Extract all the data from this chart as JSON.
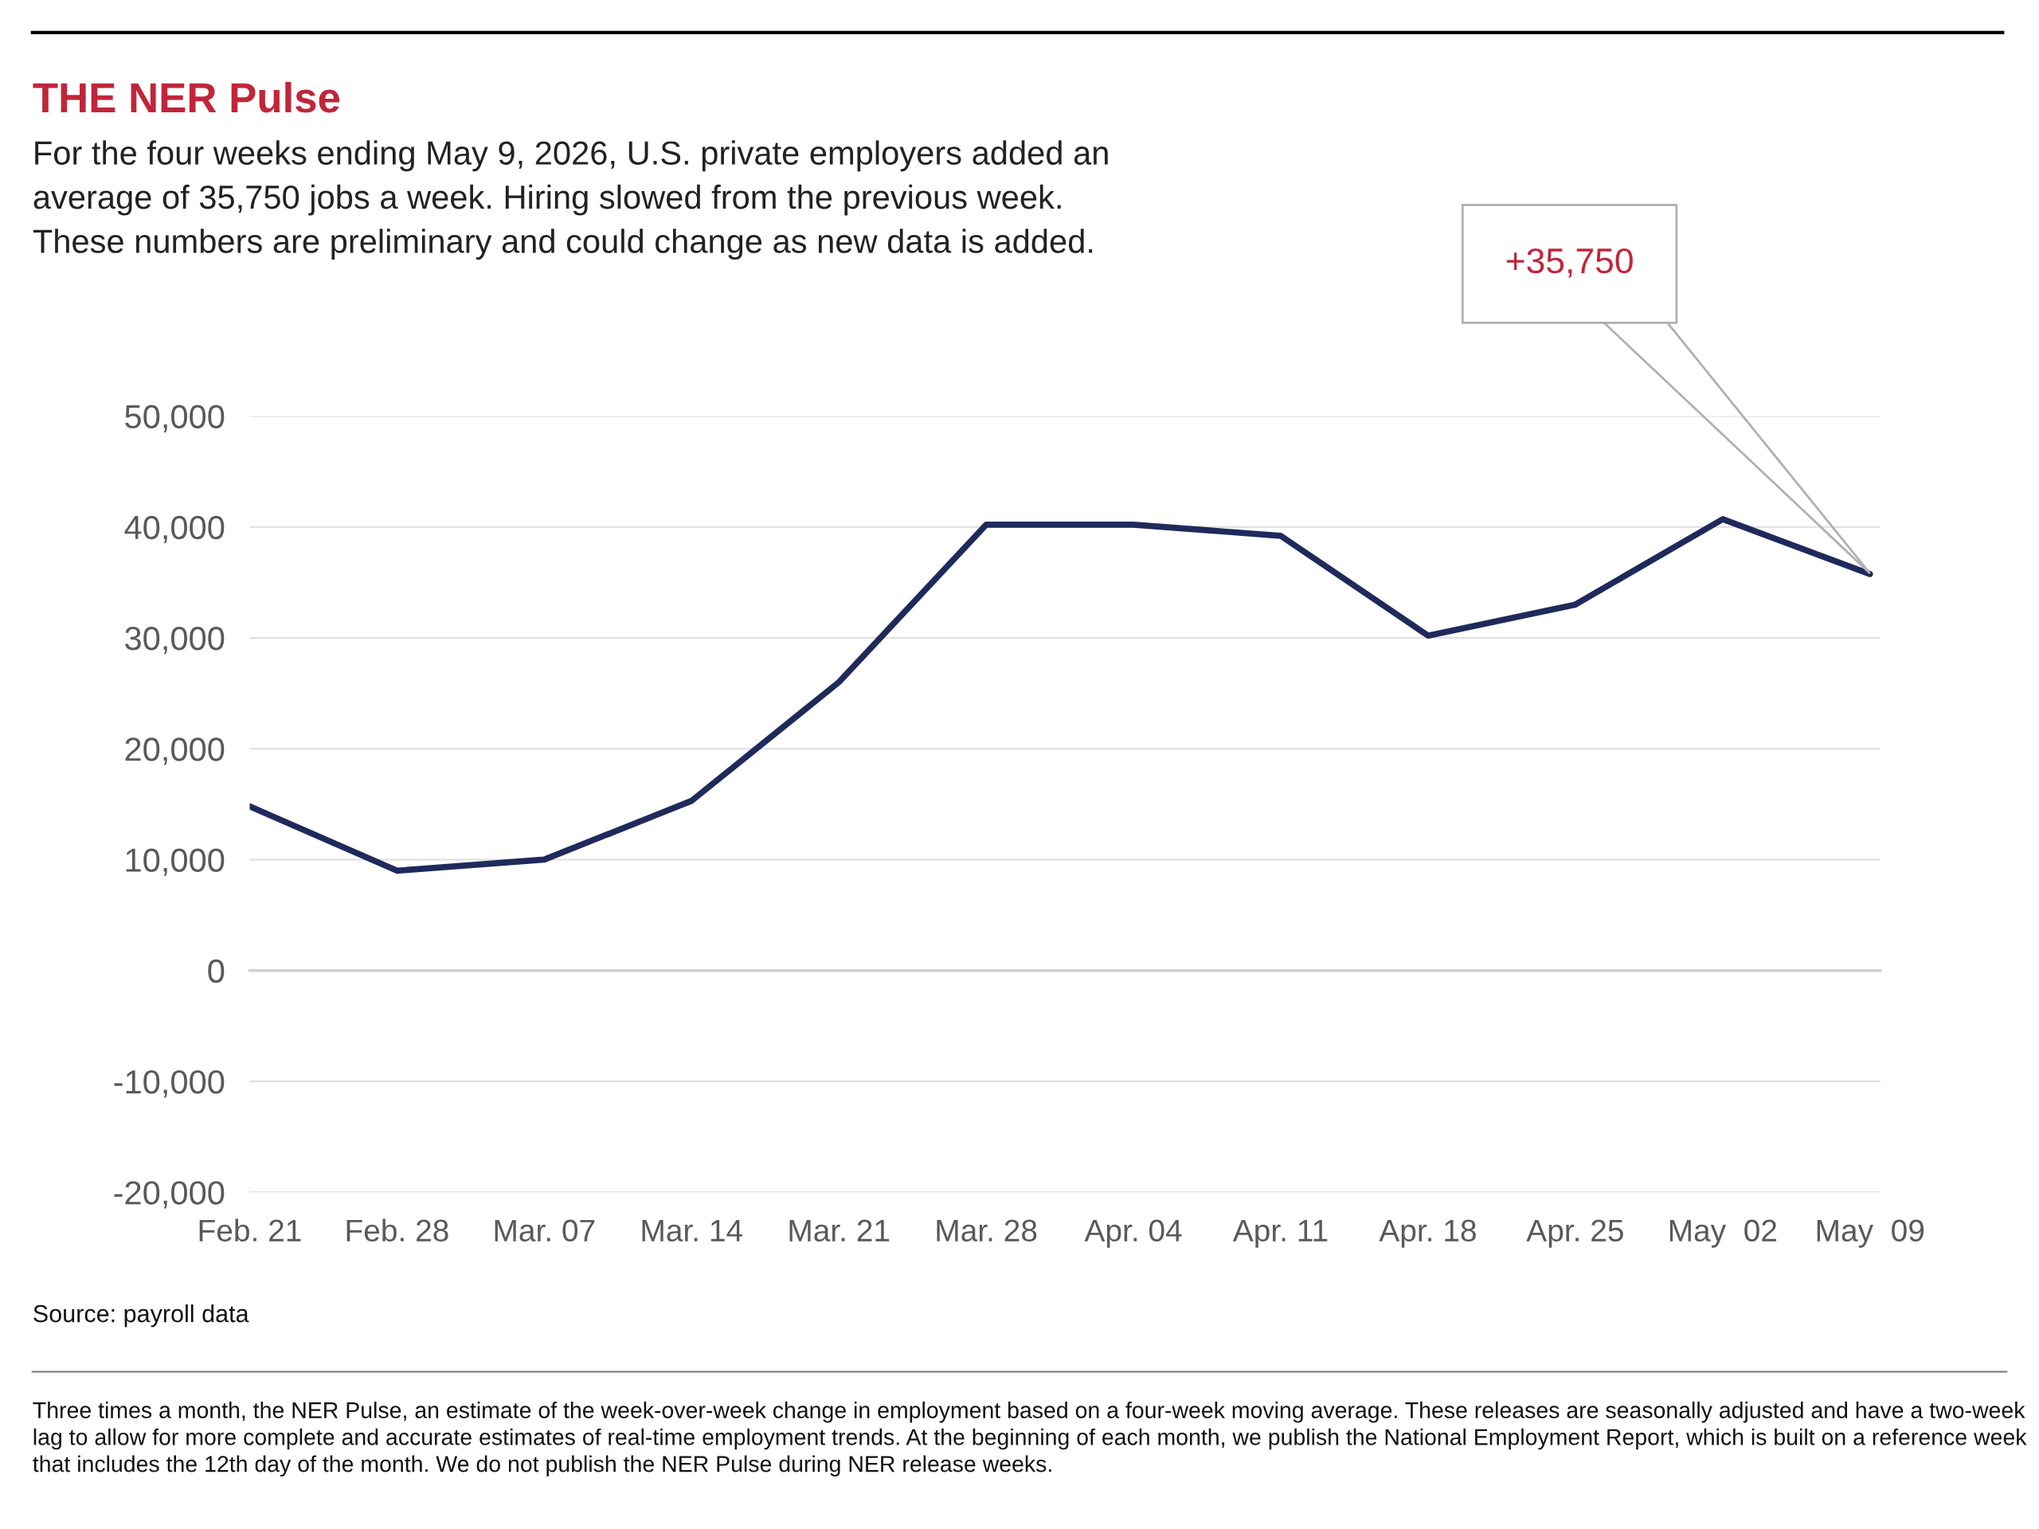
{
  "chart_data": {
    "type": "line",
    "title": "THE NER Pulse",
    "subtitle": "For the four weeks ending May 9, 2026, U.S. private employers added an\naverage of 35,750 jobs a week. Hiring slowed from the previous week.\nThese numbers are preliminary and could change as new data is added.",
    "categories": [
      "Feb. 21",
      "Feb. 28",
      "Mar. 07",
      "Mar. 14",
      "Mar. 21",
      "Mar. 28",
      "Apr. 04",
      "Apr. 11",
      "Apr. 18",
      "Apr. 25",
      "May  02",
      "May  09"
    ],
    "series": [
      {
        "color": "#1f2a5c",
        "values": [
          14800,
          9000,
          10000,
          15300,
          26000,
          40200,
          40200,
          39200,
          30200,
          33000,
          40700,
          35750
        ]
      }
    ],
    "ylim": [
      -20000,
      50000
    ],
    "yticks": [
      {
        "value": -20000,
        "label": "-20,000"
      },
      {
        "value": -10000,
        "label": "-10,000"
      },
      {
        "value": 0,
        "label": "0"
      },
      {
        "value": 10000,
        "label": "10,000"
      },
      {
        "value": 20000,
        "label": "20,000"
      },
      {
        "value": 30000,
        "label": "30,000"
      },
      {
        "value": 40000,
        "label": "40,000"
      },
      {
        "value": 50000,
        "label": "50,000"
      }
    ],
    "grid": "y",
    "legend": false,
    "marker": "none",
    "line_style": "solid",
    "annotations": [
      "+35,750",
      "Source: payroll data",
      "Three times a month, the NER Pulse, an estimate of the week-over-week change in employment based on a four-week moving average. These releases are seasonally adjusted and have a two-week lag to allow for more complete and accurate estimates of real-time employment trends. At the beginning of each month, we publish the National Employment Report, which is built on a reference week that includes the 12th day of the month. We do not publish the NER Pulse during NER release weeks."
    ]
  }
}
